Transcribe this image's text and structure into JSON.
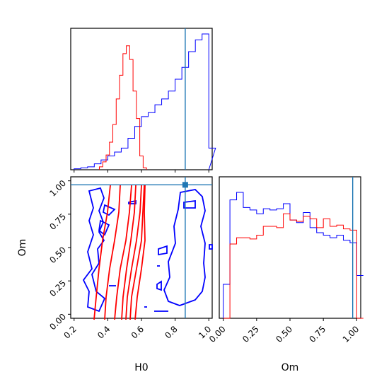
{
  "chart_data": {
    "type": "corner",
    "parameters": [
      "H0",
      "Om"
    ],
    "truth": {
      "H0": 0.86,
      "Om": 0.97
    },
    "colors": {
      "blue": "#0000ff",
      "red": "#ff0000",
      "truth": "#1f77b4"
    },
    "hist_H0": {
      "edges": [
        0.2,
        0.24,
        0.28,
        0.32,
        0.36,
        0.4,
        0.44,
        0.48,
        0.52,
        0.56,
        0.6,
        0.64,
        0.68,
        0.72,
        0.76,
        0.8,
        0.84,
        0.88,
        0.92,
        0.96,
        1.0
      ],
      "blue": [
        1,
        2,
        3,
        6,
        10,
        14,
        18,
        22,
        32,
        44,
        54,
        58,
        66,
        72,
        80,
        92,
        104,
        120,
        132,
        138,
        22
      ],
      "red_bins": [
        0.35,
        0.37,
        0.39,
        0.41,
        0.43,
        0.45,
        0.47,
        0.49,
        0.51,
        0.53,
        0.55,
        0.57,
        0.59,
        0.61
      ],
      "red": [
        3,
        8,
        15,
        28,
        46,
        72,
        96,
        118,
        126,
        112,
        80,
        52,
        14,
        2
      ]
    },
    "hist_Om": {
      "edges": [
        0.0,
        0.05,
        0.1,
        0.15,
        0.2,
        0.25,
        0.3,
        0.35,
        0.4,
        0.45,
        0.5,
        0.55,
        0.6,
        0.65,
        0.7,
        0.75,
        0.8,
        0.85,
        0.9,
        0.95,
        1.0
      ],
      "blue": [
        0.27,
        0.94,
        1.0,
        0.88,
        0.86,
        0.83,
        0.87,
        0.86,
        0.87,
        0.91,
        0.78,
        0.76,
        0.84,
        0.72,
        0.68,
        0.66,
        0.64,
        0.66,
        0.62,
        0.6,
        0.34
      ],
      "red": [
        0.0,
        0.59,
        0.64,
        0.64,
        0.63,
        0.66,
        0.73,
        0.73,
        0.72,
        0.83,
        0.78,
        0.77,
        0.81,
        0.79,
        0.72,
        0.79,
        0.73,
        0.74,
        0.71,
        0.7,
        0.0
      ]
    },
    "xlim_H0": [
      0.18,
      1.02
    ],
    "ylim_Om": [
      -0.03,
      1.03
    ],
    "xlim_Om": [
      -0.03,
      1.03
    ],
    "ticks_H0": [
      "0.2",
      "0.4",
      "0.6",
      "0.8",
      "1.0"
    ],
    "ticks_Om": [
      "0.00",
      "0.25",
      "0.50",
      "0.75",
      "1.00"
    ],
    "xlabel_H0": "H0",
    "ylabel_Om": "Om",
    "xlabel_Om": "Om"
  }
}
